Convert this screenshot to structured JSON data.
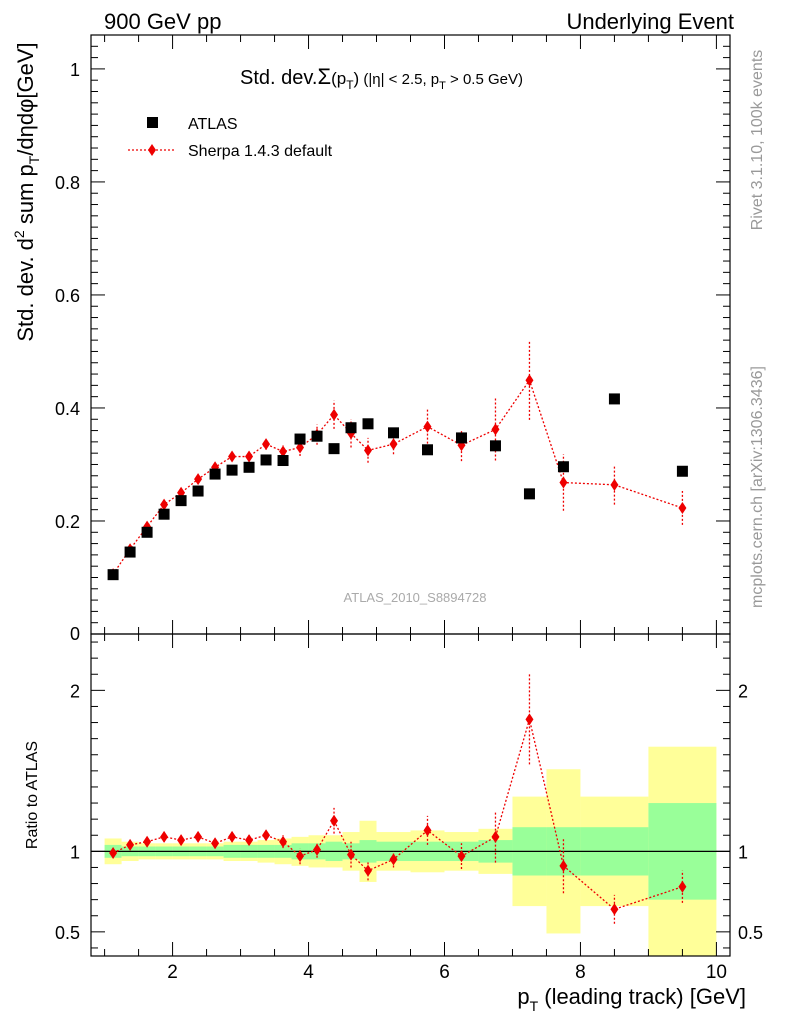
{
  "header": {
    "left": "900 GeV pp",
    "right": "Underlying Event"
  },
  "side_text": {
    "rivet": "Rivet 3.1.10,  100k events",
    "mcplots": "mcplots.cern.ch [arXiv:1306.3436]"
  },
  "watermark": "ATLAS_2010_S8894728",
  "colors": {
    "data": "#000000",
    "mc": "#ee0000",
    "band_inner": "#99ff99",
    "band_outer": "#ffff99"
  },
  "chart_data": [
    {
      "type": "scatter",
      "panel": "main",
      "title": {
        "prefix": "Std. dev.",
        "sigma": "Σ",
        "arg_open": "(p",
        "arg_sub": "T",
        "arg_close": ")",
        "cut_open": " (|η| < 2.5, p",
        "cut_sub": "T",
        "cut_close": " > 0.5 GeV)"
      },
      "ylabel": {
        "part1": "Std. dev. d",
        "sup": "2",
        "part2": " sum p",
        "sub": "T",
        "part3": "/dηdφ[GeV]"
      },
      "xlim": [
        0.8,
        10.2
      ],
      "ylim": [
        0,
        1.06
      ],
      "yticks": [
        0.2,
        0.4,
        0.6,
        0.8,
        1
      ],
      "ytick_labels": [
        "0.2",
        "0.4",
        "0.6",
        "0.8",
        "1"
      ],
      "ytick_zero_label": "0",
      "legend": {
        "placement": "top-left",
        "entries": [
          "ATLAS",
          "Sherpa 1.4.3 default"
        ]
      },
      "x": [
        1.125,
        1.375,
        1.625,
        1.875,
        2.125,
        2.375,
        2.625,
        2.875,
        3.125,
        3.375,
        3.625,
        3.875,
        4.125,
        4.375,
        4.625,
        4.875,
        5.25,
        5.75,
        6.25,
        6.75,
        7.25,
        7.75,
        8.5,
        9.5
      ],
      "xerr": [
        0.125,
        0.125,
        0.125,
        0.125,
        0.125,
        0.125,
        0.125,
        0.125,
        0.125,
        0.125,
        0.125,
        0.125,
        0.125,
        0.125,
        0.125,
        0.125,
        0.25,
        0.25,
        0.25,
        0.25,
        0.25,
        0.25,
        0.5,
        0.5
      ],
      "series": [
        {
          "name": "ATLAS",
          "values": [
            0.105,
            0.145,
            0.18,
            0.212,
            0.236,
            0.253,
            0.283,
            0.29,
            0.295,
            0.308,
            0.307,
            0.345,
            0.35,
            0.328,
            0.365,
            0.372,
            0.356,
            0.326,
            0.347,
            0.333,
            0.248,
            0.296,
            0.416,
            0.288
          ]
        },
        {
          "name": "Sherpa 1.4.3 default",
          "values": [
            0.106,
            0.15,
            0.19,
            0.229,
            0.25,
            0.274,
            0.295,
            0.314,
            0.314,
            0.336,
            0.323,
            0.33,
            0.353,
            0.388,
            0.355,
            0.325,
            0.336,
            0.367,
            0.334,
            0.362,
            0.449,
            0.268,
            0.264,
            0.223
          ],
          "err_low": [
            0.004,
            0.005,
            0.006,
            0.007,
            0.007,
            0.007,
            0.008,
            0.008,
            0.009,
            0.01,
            0.011,
            0.015,
            0.018,
            0.025,
            0.025,
            0.022,
            0.018,
            0.03,
            0.028,
            0.055,
            0.07,
            0.05,
            0.035,
            0.03
          ],
          "err_high": [
            0.004,
            0.005,
            0.006,
            0.007,
            0.007,
            0.007,
            0.008,
            0.008,
            0.009,
            0.01,
            0.011,
            0.015,
            0.018,
            0.025,
            0.025,
            0.022,
            0.018,
            0.03,
            0.028,
            0.055,
            0.07,
            0.05,
            0.035,
            0.03
          ]
        }
      ]
    },
    {
      "type": "scatter",
      "panel": "ratio",
      "ylabel": "Ratio to ATLAS",
      "xlabel": {
        "main": "p",
        "sub": "T",
        "rest": " (leading track) [GeV]"
      },
      "xlim": [
        0.8,
        10.2
      ],
      "ylim": [
        0.35,
        2.35
      ],
      "xticks": [
        2,
        4,
        6,
        8,
        10
      ],
      "xtick_labels": [
        "2",
        "4",
        "6",
        "8",
        "10"
      ],
      "yticks": [
        0.5,
        1,
        2
      ],
      "ytick_labels": [
        "0.5",
        "1",
        "2"
      ],
      "reference_line": 1,
      "bands": {
        "x_edges": [
          1.0,
          1.25,
          1.5,
          1.75,
          2.0,
          2.25,
          2.5,
          2.75,
          3.0,
          3.25,
          3.5,
          3.75,
          4.0,
          4.25,
          4.5,
          4.75,
          5.0,
          5.5,
          6.0,
          6.5,
          7.0,
          7.5,
          8.0,
          9.0,
          10.0
        ],
        "inner_low": [
          0.96,
          0.97,
          0.97,
          0.97,
          0.97,
          0.97,
          0.97,
          0.96,
          0.96,
          0.96,
          0.96,
          0.95,
          0.95,
          0.94,
          0.95,
          0.93,
          0.94,
          0.94,
          0.94,
          0.93,
          0.85,
          0.85,
          0.85,
          0.7
        ],
        "inner_high": [
          1.04,
          1.03,
          1.03,
          1.03,
          1.03,
          1.03,
          1.03,
          1.04,
          1.04,
          1.04,
          1.04,
          1.05,
          1.05,
          1.06,
          1.05,
          1.07,
          1.06,
          1.06,
          1.06,
          1.07,
          1.15,
          1.15,
          1.15,
          1.3
        ],
        "outer_low": [
          0.92,
          0.94,
          0.95,
          0.95,
          0.95,
          0.95,
          0.95,
          0.94,
          0.94,
          0.93,
          0.92,
          0.91,
          0.9,
          0.9,
          0.88,
          0.81,
          0.88,
          0.87,
          0.88,
          0.86,
          0.66,
          0.49,
          0.66,
          0.35
        ],
        "outer_high": [
          1.08,
          1.06,
          1.05,
          1.05,
          1.05,
          1.05,
          1.05,
          1.06,
          1.06,
          1.07,
          1.08,
          1.09,
          1.1,
          1.1,
          1.12,
          1.19,
          1.12,
          1.13,
          1.12,
          1.14,
          1.34,
          1.51,
          1.34,
          1.65
        ]
      },
      "series": [
        {
          "name": "Sherpa 1.4.3 default",
          "values": [
            0.99,
            1.04,
            1.06,
            1.09,
            1.07,
            1.09,
            1.05,
            1.09,
            1.07,
            1.1,
            1.06,
            0.97,
            1.01,
            1.19,
            0.98,
            0.88,
            0.95,
            1.13,
            0.97,
            1.09,
            1.82,
            0.91,
            0.64,
            0.78
          ],
          "err_low": [
            0.03,
            0.03,
            0.03,
            0.03,
            0.03,
            0.03,
            0.03,
            0.03,
            0.03,
            0.03,
            0.04,
            0.05,
            0.05,
            0.08,
            0.08,
            0.06,
            0.05,
            0.09,
            0.08,
            0.16,
            0.28,
            0.17,
            0.09,
            0.1
          ],
          "err_high": [
            0.03,
            0.03,
            0.03,
            0.03,
            0.03,
            0.03,
            0.03,
            0.03,
            0.03,
            0.03,
            0.04,
            0.05,
            0.05,
            0.08,
            0.08,
            0.06,
            0.05,
            0.09,
            0.08,
            0.16,
            0.28,
            0.17,
            0.09,
            0.1
          ]
        }
      ]
    }
  ]
}
